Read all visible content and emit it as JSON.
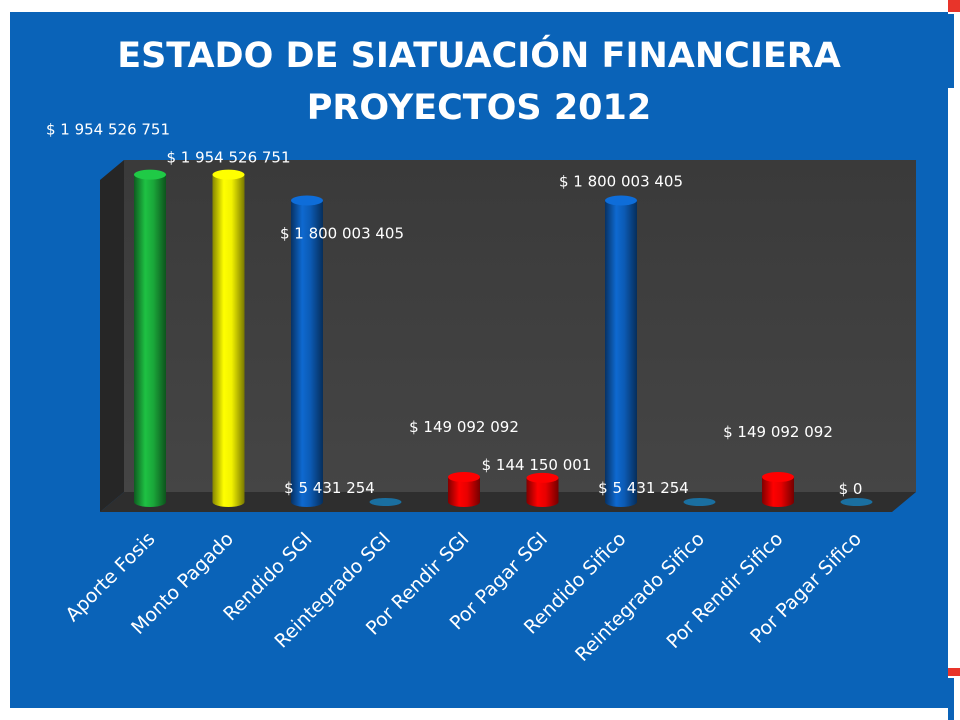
{
  "slide": {
    "title_line1": "ESTADO DE SIATUACIÓN FINANCIERA",
    "title_line2": "PROYECTOS 2012"
  },
  "colors": {
    "background": "#0a63b8",
    "plot_wall": "#3d3d3d",
    "green": "#1aa83a",
    "yellow": "#f2f200",
    "blue": "#0c5bb5",
    "red": "#e80000",
    "accent_red": "#e8342a"
  },
  "chart_data": {
    "type": "bar",
    "style": "3d-cylinder",
    "title": "",
    "xlabel": "",
    "ylabel": "",
    "ylim": [
      0,
      2000000000
    ],
    "grid": false,
    "legend": "none",
    "categories": [
      "Aporte Fosis",
      "Monto Pagado",
      "Rendido SGI",
      "Reintegrado SGI",
      "Por Rendir SGI",
      "Por Pagar SGI",
      "Rendido Sifico",
      "Reintegrado Sifico",
      "Por Rendir Sifico",
      "Por Pagar Sifico"
    ],
    "values": [
      1954526751,
      1954526751,
      1800003405,
      5431254,
      149092092,
      144150001,
      1800003405,
      5431254,
      149092092,
      0
    ],
    "data_labels": [
      "$ 1 954 526 751",
      "$ 1 954 526 751",
      "$ 1 800 003 405",
      "$ 5 431 254",
      "$ 149 092 092",
      "$ 144 150 001",
      "$ 1 800 003 405",
      "$ 5 431 254",
      "$ 149 092 092",
      "$ 0"
    ],
    "bar_colors": [
      "#1aa83a",
      "#f2f200",
      "#0c5bb5",
      "#1a6fa0",
      "#e80000",
      "#e80000",
      "#0c5bb5",
      "#1a6fa0",
      "#e80000",
      "#1a6fa0"
    ]
  }
}
